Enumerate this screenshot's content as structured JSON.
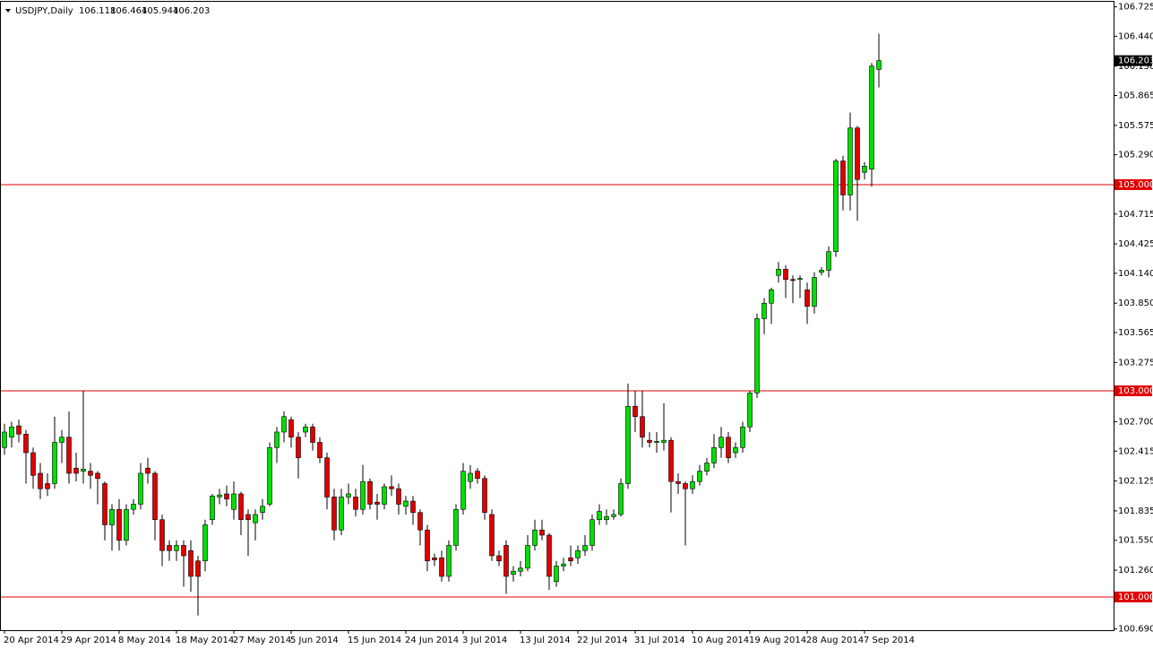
{
  "chart_data": {
    "type": "candlestick",
    "symbol": "USDJPY,Daily",
    "categories": [
      "20 Apr 2014",
      null,
      null,
      null,
      null,
      null,
      null,
      null,
      "29 Apr 2014",
      null,
      null,
      null,
      null,
      null,
      null,
      null,
      "8 May 2014",
      null,
      null,
      null,
      null,
      null,
      null,
      null,
      "18 May 2014",
      null,
      null,
      null,
      null,
      null,
      null,
      null,
      "27 May 2014",
      null,
      null,
      null,
      null,
      null,
      null,
      null,
      "5 Jun 2014",
      null,
      null,
      null,
      null,
      null,
      null,
      null,
      "15 Jun 2014",
      null,
      null,
      null,
      null,
      null,
      null,
      null,
      "24 Jun 2014",
      null,
      null,
      null,
      null,
      null,
      null,
      null,
      "3 Jul 2014",
      null,
      null,
      null,
      null,
      null,
      null,
      null,
      "13 Jul 2014",
      null,
      null,
      null,
      null,
      null,
      null,
      null,
      "22 Jul 2014",
      null,
      null,
      null,
      null,
      null,
      null,
      null,
      "31 Jul 2014",
      null,
      null,
      null,
      null,
      null,
      null,
      null,
      "10 Aug 2014",
      null,
      null,
      null,
      null,
      null,
      null,
      null,
      "19 Aug 2014",
      null,
      null,
      null,
      null,
      null,
      null,
      null,
      "28 Aug 2014",
      null,
      null,
      null,
      null,
      null,
      null,
      null,
      "7 Sep 2014",
      null,
      null
    ],
    "open": [
      102.45,
      102.55,
      102.66,
      102.58,
      102.4,
      102.2,
      102.1,
      102.1,
      102.5,
      102.55,
      102.25,
      102.22,
      102.22,
      102.2,
      102.1,
      101.7,
      101.85,
      101.55,
      101.85,
      101.9,
      102.25,
      102.2,
      101.75,
      101.5,
      101.45,
      101.5,
      101.45,
      101.35,
      101.35,
      101.75,
      101.97,
      102.0,
      101.85,
      102.0,
      101.8,
      101.72,
      101.82,
      101.9,
      102.45,
      102.6,
      102.72,
      102.55,
      102.6,
      102.65,
      102.5,
      102.35,
      101.97,
      101.65,
      101.97,
      101.97,
      101.85,
      102.12,
      101.92,
      101.9,
      102.07,
      102.05,
      101.88,
      101.93,
      101.82,
      101.65,
      101.38,
      101.38,
      101.2,
      101.5,
      101.85,
      102.12,
      102.22,
      102.15,
      101.8,
      101.4,
      101.5,
      101.22,
      101.25,
      101.28,
      101.5,
      101.65,
      101.6,
      101.15,
      101.3,
      101.38,
      101.38,
      101.45,
      101.5,
      101.75,
      101.75,
      101.78,
      101.8,
      102.1,
      102.85,
      102.75,
      102.52,
      102.5,
      102.5,
      102.52,
      102.12,
      102.1,
      102.05,
      102.12,
      102.22,
      102.3,
      102.45,
      102.55,
      102.4,
      102.45,
      102.65,
      102.98,
      103.7,
      103.85,
      104.12,
      104.18,
      104.08,
      104.08,
      103.98,
      103.82,
      104.15,
      104.17,
      104.35,
      105.23,
      104.9,
      105.55,
      105.12,
      105.15,
      106.118
    ],
    "high": [
      102.68,
      102.7,
      102.72,
      102.62,
      102.45,
      102.3,
      102.2,
      102.75,
      102.62,
      102.8,
      102.4,
      103.0,
      102.3,
      102.22,
      102.12,
      101.9,
      101.95,
      101.9,
      101.95,
      102.3,
      102.35,
      102.22,
      101.8,
      101.55,
      101.55,
      101.55,
      101.55,
      101.4,
      101.75,
      102.0,
      102.05,
      102.08,
      102.12,
      102.02,
      101.85,
      101.85,
      101.95,
      102.5,
      102.65,
      102.8,
      102.75,
      102.6,
      102.68,
      102.68,
      102.55,
      102.4,
      102.05,
      102.05,
      102.1,
      102.05,
      102.28,
      102.15,
      102.0,
      102.1,
      102.18,
      102.1,
      101.98,
      101.98,
      101.85,
      101.7,
      101.42,
      101.45,
      101.55,
      101.9,
      102.3,
      102.28,
      102.25,
      102.18,
      101.85,
      101.45,
      101.55,
      101.3,
      101.35,
      101.6,
      101.75,
      101.75,
      101.62,
      101.35,
      101.38,
      101.5,
      101.5,
      101.6,
      101.8,
      101.9,
      101.85,
      101.85,
      102.15,
      103.07,
      103.0,
      103.0,
      102.6,
      102.6,
      102.88,
      102.55,
      102.2,
      102.12,
      102.18,
      102.28,
      102.35,
      102.58,
      102.65,
      102.6,
      102.5,
      102.7,
      103.0,
      103.75,
      103.9,
      104.0,
      104.25,
      104.22,
      104.12,
      104.12,
      104.05,
      104.15,
      104.2,
      104.4,
      105.25,
      105.28,
      105.7,
      105.57,
      105.22,
      106.18,
      106.464
    ],
    "low": [
      102.38,
      102.45,
      102.5,
      102.1,
      102.05,
      101.95,
      101.98,
      102.05,
      102.3,
      102.1,
      102.12,
      102.1,
      102.05,
      101.9,
      101.55,
      101.45,
      101.45,
      101.5,
      101.8,
      101.85,
      102.1,
      101.55,
      101.3,
      101.35,
      101.35,
      101.1,
      101.05,
      100.82,
      101.25,
      101.7,
      101.9,
      101.88,
      101.75,
      101.6,
      101.4,
      101.55,
      101.75,
      101.88,
      102.3,
      102.5,
      102.45,
      102.15,
      102.55,
      102.42,
      102.3,
      101.85,
      101.55,
      101.6,
      101.9,
      101.78,
      101.8,
      101.85,
      101.75,
      101.85,
      101.98,
      101.8,
      101.8,
      101.7,
      101.5,
      101.25,
      101.3,
      101.15,
      101.15,
      101.45,
      101.8,
      102.05,
      102.1,
      101.75,
      101.35,
      101.3,
      101.03,
      101.15,
      101.2,
      101.25,
      101.45,
      101.55,
      101.07,
      101.1,
      101.25,
      101.3,
      101.32,
      101.4,
      101.45,
      101.7,
      101.7,
      101.75,
      101.78,
      102.05,
      102.6,
      102.45,
      102.45,
      102.4,
      102.42,
      101.82,
      102.0,
      101.5,
      102.0,
      102.08,
      102.18,
      102.25,
      102.35,
      102.3,
      102.35,
      102.4,
      102.6,
      102.93,
      103.55,
      103.65,
      104.05,
      103.9,
      103.85,
      103.9,
      103.65,
      103.75,
      104.12,
      104.1,
      104.3,
      104.75,
      104.75,
      104.65,
      105.05,
      104.98,
      105.944
    ],
    "close": [
      102.6,
      102.65,
      102.58,
      102.4,
      102.18,
      102.05,
      102.05,
      102.5,
      102.55,
      102.2,
      102.2,
      102.24,
      102.18,
      102.15,
      101.7,
      101.85,
      101.55,
      101.85,
      101.9,
      102.2,
      102.2,
      101.75,
      101.45,
      101.45,
      101.5,
      101.4,
      101.2,
      101.2,
      101.7,
      101.98,
      101.99,
      101.95,
      102.0,
      101.75,
      101.75,
      101.8,
      101.88,
      102.45,
      102.6,
      102.75,
      102.55,
      102.35,
      102.65,
      102.5,
      102.35,
      101.97,
      101.65,
      101.97,
      102.0,
      101.85,
      102.12,
      101.9,
      101.9,
      102.07,
      102.05,
      101.9,
      101.93,
      101.82,
      101.65,
      101.35,
      101.36,
      101.2,
      101.5,
      101.85,
      102.22,
      102.2,
      102.15,
      101.82,
      101.4,
      101.35,
      101.2,
      101.25,
      101.28,
      101.5,
      101.65,
      101.6,
      101.2,
      101.3,
      101.32,
      101.35,
      101.45,
      101.5,
      101.75,
      101.83,
      101.78,
      101.8,
      102.1,
      102.85,
      102.75,
      102.55,
      102.5,
      102.51,
      102.52,
      102.12,
      102.1,
      102.05,
      102.12,
      102.22,
      102.3,
      102.45,
      102.55,
      102.35,
      102.45,
      102.65,
      102.98,
      103.7,
      103.85,
      103.98,
      104.18,
      104.08,
      104.07,
      104.09,
      103.82,
      104.1,
      104.17,
      104.35,
      105.23,
      104.9,
      105.55,
      105.05,
      105.18,
      106.15,
      106.203
    ],
    "up_color": "#00e000",
    "down_color": "#e00000",
    "wick_color": "#000000",
    "line_color": "#e00000",
    "ylim": [
      100.678,
      106.774
    ],
    "yticks": [
      106.725,
      {
        "value": 106.44,
        "label": "106.440"
      },
      {
        "value": 106.15,
        "label": "106.150"
      },
      105.865,
      105.575,
      {
        "value": 105.29,
        "label": "105.290"
      },
      104.715,
      104.425,
      {
        "value": 104.14,
        "label": "104.140"
      },
      {
        "value": 103.85,
        "label": "103.850"
      },
      103.565,
      103.275,
      {
        "value": 102.7,
        "label": "102.700"
      },
      102.415,
      102.125,
      101.835,
      {
        "value": 101.55,
        "label": "101.550"
      },
      {
        "value": 101.26,
        "label": "101.260"
      },
      {
        "value": 100.69,
        "label": "100.690"
      }
    ],
    "hlines": [
      {
        "value": 105,
        "label": "105.000"
      },
      {
        "value": 103,
        "label": "103.000"
      },
      {
        "value": 101,
        "label": "101.000"
      }
    ]
  }
}
